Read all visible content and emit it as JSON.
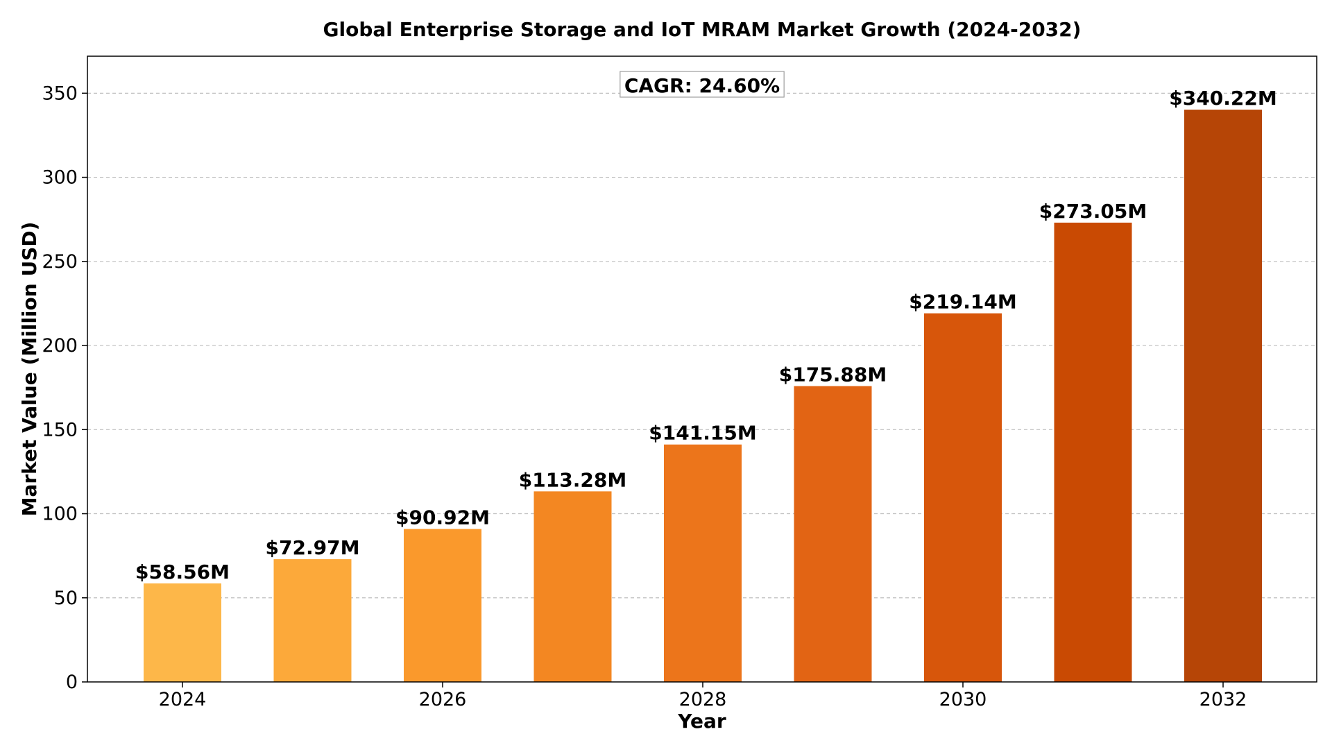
{
  "chart_data": {
    "type": "bar",
    "title": "Global Enterprise Storage and IoT MRAM Market Growth (2024-2032)",
    "xlabel": "Year",
    "ylabel": "Market Value (Million USD)",
    "categories": [
      "2024",
      "2025",
      "2026",
      "2027",
      "2028",
      "2029",
      "2030",
      "2031",
      "2032"
    ],
    "values": [
      58.56,
      72.97,
      90.92,
      113.28,
      141.15,
      175.88,
      219.14,
      273.05,
      340.22
    ],
    "data_labels": [
      "$58.56M",
      "$72.97M",
      "$90.92M",
      "$113.28M",
      "$141.15M",
      "$175.88M",
      "$219.14M",
      "$273.05M",
      "$340.22M"
    ],
    "bar_colors": [
      "#FDB749",
      "#FCA93A",
      "#FA992C",
      "#F38722",
      "#EC751B",
      "#E26414",
      "#D7560B",
      "#C94A03",
      "#B64506"
    ],
    "x_ticks": [
      "2024",
      "2026",
      "2028",
      "2030",
      "2032"
    ],
    "y_ticks": [
      0,
      50,
      100,
      150,
      200,
      250,
      300,
      350
    ],
    "ylim": [
      0,
      372
    ],
    "grid": true,
    "grid_axis": "y",
    "annotation": "CAGR: 24.60%",
    "annotation_placement": "top-center"
  }
}
